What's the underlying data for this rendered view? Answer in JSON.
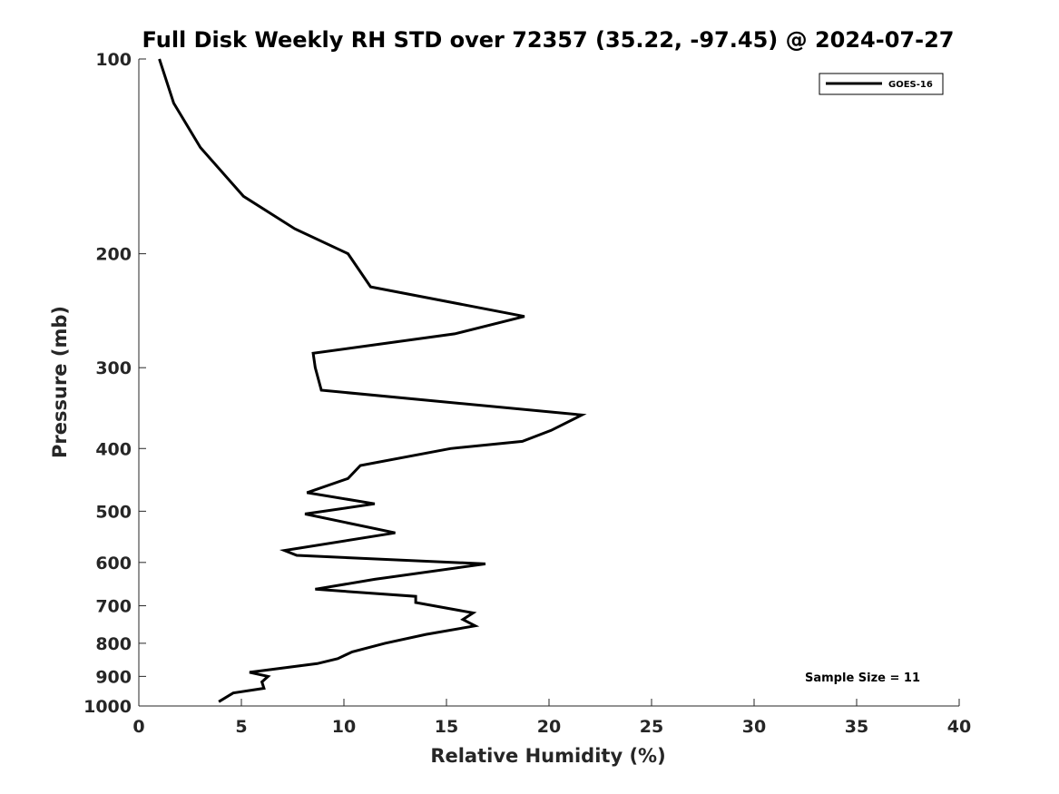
{
  "chart_data": {
    "type": "line",
    "title": "Full Disk Weekly RH STD over 72357 (35.22, -97.45) @ 2024-07-27",
    "xlabel": "Relative Humidity (%)",
    "ylabel": "Pressure (mb)",
    "xlim": [
      0,
      40
    ],
    "ylim": [
      100,
      1000
    ],
    "y_scale": "log",
    "y_reversed": true,
    "x_ticks": [
      0,
      5,
      10,
      15,
      20,
      25,
      30,
      35,
      40
    ],
    "y_ticks": [
      100,
      200,
      300,
      400,
      500,
      600,
      700,
      800,
      900,
      1000
    ],
    "grid": false,
    "legend": {
      "position": "top-right",
      "entries": [
        "GOES-16"
      ]
    },
    "annotation": "Sample Size = 11",
    "series": [
      {
        "name": "GOES-16",
        "color": "#000000",
        "x": [
          1.0,
          1.7,
          3.0,
          5.1,
          7.6,
          10.2,
          11.3,
          18.8,
          15.4,
          8.5,
          8.6,
          8.9,
          21.6,
          20.1,
          18.7,
          15.2,
          10.8,
          10.2,
          8.2,
          11.5,
          8.1,
          12.5,
          7.1,
          7.7,
          16.9,
          11.5,
          8.6,
          13.5,
          13.5,
          16.3,
          15.8,
          16.4,
          14.0,
          12.0,
          10.4,
          9.7,
          8.7,
          5.4,
          6.3,
          6.0,
          6.1,
          4.6,
          3.9
        ],
        "y": [
          100,
          117,
          137,
          163,
          183,
          200,
          225,
          250,
          266,
          285,
          300,
          325,
          355,
          375,
          390,
          400,
          425,
          445,
          468,
          487,
          505,
          540,
          575,
          585,
          603,
          637,
          660,
          677,
          692,
          718,
          735,
          752,
          775,
          800,
          825,
          845,
          860,
          887,
          900,
          918,
          939,
          955,
          985
        ]
      }
    ]
  }
}
